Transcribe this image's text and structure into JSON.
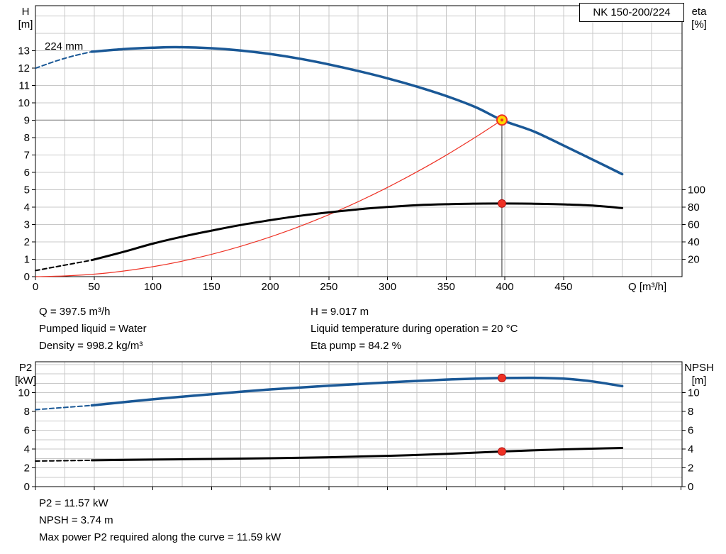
{
  "pump_label": "NK 150-200/224",
  "annotations": {
    "impeller": "224 mm",
    "mid_left": [
      "Q = 397.5 m³/h",
      "Pumped liquid = Water",
      "Density = 998.2 kg/m³"
    ],
    "mid_right": [
      "H = 9.017 m",
      "Liquid temperature during operation = 20 °C",
      "Eta pump = 84.2 %"
    ],
    "bottom": [
      "P2 = 11.57 kW",
      "NPSH = 3.74 m",
      "Max power P2 required along the curve = 11.59 kW"
    ]
  },
  "duty_point": {
    "q_m3h": 397.5,
    "h_m": 9.017,
    "eta_pct": 84.2,
    "p2_kw": 11.57,
    "npsh_m": 3.74,
    "p2_max_kw": 11.59
  },
  "chart_data": [
    {
      "type": "line",
      "title": "NK 150-200/224",
      "x_axis": {
        "label": "Q [m³/h]",
        "min": 0,
        "max": 551,
        "tick_step": 50,
        "tick_max": 450,
        "grid_step": 25,
        "show_tick_labels": true
      },
      "y_left": {
        "label_lines": [
          "H",
          "[m]"
        ],
        "min": 0,
        "max": 15.6,
        "tick_step": 1,
        "tick_max": 13,
        "grid_step": 1
      },
      "y_right": {
        "label_lines": [
          "eta",
          "[%]"
        ],
        "min": 0,
        "max": 312,
        "tick_min": 20,
        "tick_step": 20,
        "tick_max": 100
      },
      "series": [
        {
          "name": "system-curve",
          "axis": "left",
          "color": "#ee3124",
          "width": 1.2,
          "points": [
            [
              0,
              0
            ],
            [
              25,
              0.04
            ],
            [
              50,
              0.143
            ],
            [
              75,
              0.321
            ],
            [
              100,
              0.571
            ],
            [
              125,
              0.892
            ],
            [
              150,
              1.284
            ],
            [
              175,
              1.748
            ],
            [
              200,
              2.283
            ],
            [
              225,
              2.889
            ],
            [
              250,
              3.567
            ],
            [
              275,
              4.316
            ],
            [
              300,
              5.137
            ],
            [
              325,
              6.03
            ],
            [
              350,
              6.99
            ],
            [
              375,
              8.03
            ],
            [
              397.5,
              9.017
            ]
          ]
        },
        {
          "name": "efficiency-curve-extrapolated",
          "axis": "right",
          "color": "#000000",
          "width": 2,
          "dash": "6,4",
          "points": [
            [
              0,
              7
            ],
            [
              16,
              11
            ],
            [
              32,
              15
            ],
            [
              48,
              19
            ]
          ]
        },
        {
          "name": "efficiency-curve",
          "axis": "right",
          "color": "#000000",
          "width": 3,
          "points": [
            [
              48,
              19
            ],
            [
              75,
              28.5
            ],
            [
              100,
              38
            ],
            [
              125,
              46
            ],
            [
              150,
              53
            ],
            [
              175,
              59.5
            ],
            [
              200,
              65
            ],
            [
              225,
              70
            ],
            [
              250,
              74
            ],
            [
              275,
              77.5
            ],
            [
              300,
              80.2
            ],
            [
              325,
              82.3
            ],
            [
              350,
              83.4
            ],
            [
              375,
              84.05
            ],
            [
              397.5,
              84.2
            ],
            [
              425,
              84
            ],
            [
              450,
              83.2
            ],
            [
              475,
              81.8
            ],
            [
              500,
              79
            ]
          ]
        },
        {
          "name": "pump-curve-extrapolated",
          "axis": "left",
          "color": "#1a5896",
          "width": 2,
          "dash": "6,4",
          "points": [
            [
              0,
              12.0
            ],
            [
              16,
              12.38
            ],
            [
              32,
              12.7
            ],
            [
              48,
              12.95
            ]
          ]
        },
        {
          "name": "pump-curve",
          "axis": "left",
          "color": "#1a5896",
          "width": 3.5,
          "points": [
            [
              48,
              12.95
            ],
            [
              75,
              13.1
            ],
            [
              100,
              13.18
            ],
            [
              120,
              13.21
            ],
            [
              150,
              13.15
            ],
            [
              175,
              13.02
            ],
            [
              200,
              12.82
            ],
            [
              225,
              12.55
            ],
            [
              250,
              12.22
            ],
            [
              275,
              11.84
            ],
            [
              300,
              11.42
            ],
            [
              325,
              10.94
            ],
            [
              350,
              10.4
            ],
            [
              375,
              9.76
            ],
            [
              397.5,
              9.017
            ],
            [
              425,
              8.35
            ],
            [
              450,
              7.55
            ],
            [
              475,
              6.73
            ],
            [
              500,
              5.9
            ]
          ]
        }
      ],
      "ref_lines": [
        {
          "name": "duty-head-line",
          "type": "h",
          "value": 9.017,
          "from_x": 0,
          "to_x": 397.5,
          "color": "#808080",
          "width": 1
        },
        {
          "name": "duty-flow-line",
          "type": "v",
          "x": 397.5,
          "from": 0,
          "to": 9.017,
          "color": "#303030",
          "width": 1
        }
      ],
      "markers": [
        {
          "name": "efficiency-point",
          "axis": "right",
          "x": 397.5,
          "y": 84.2,
          "r": 5.5,
          "fill": "#ee3124",
          "stroke": "#b01010",
          "stroke_width": 1
        },
        {
          "name": "duty-point",
          "axis": "left",
          "x": 397.5,
          "y": 9.017,
          "r": 7,
          "fill": "#ffd800",
          "stroke": "#ee3124",
          "stroke_width": 2,
          "center_dot": true
        }
      ]
    },
    {
      "type": "line",
      "title": "",
      "x_axis": {
        "label": "",
        "min": 0,
        "max": 551,
        "tick_step": 50,
        "tick_max": 550,
        "grid_step": 25,
        "show_tick_labels": false
      },
      "y_left": {
        "label_lines": [
          "P2",
          "[kW]"
        ],
        "min": 0,
        "max": 13.3,
        "tick_step": 2,
        "tick_max": 10,
        "grid_step": 1
      },
      "y_right": {
        "label_lines": [
          "NPSH",
          "[m]"
        ],
        "min": 0,
        "max": 13.3,
        "tick_min": 0,
        "tick_step": 2,
        "tick_max": 10
      },
      "series": [
        {
          "name": "p2-curve-extrapolated",
          "axis": "left",
          "color": "#1a5896",
          "width": 2,
          "dash": "6,4",
          "points": [
            [
              0,
              8.2
            ],
            [
              16,
              8.35
            ],
            [
              32,
              8.5
            ],
            [
              48,
              8.65
            ]
          ]
        },
        {
          "name": "p2-curve",
          "axis": "left",
          "color": "#1a5896",
          "width": 3.5,
          "points": [
            [
              48,
              8.65
            ],
            [
              100,
              9.3
            ],
            [
              150,
              9.85
            ],
            [
              200,
              10.35
            ],
            [
              250,
              10.75
            ],
            [
              300,
              11.1
            ],
            [
              350,
              11.4
            ],
            [
              375,
              11.5
            ],
            [
              397.5,
              11.57
            ],
            [
              425,
              11.59
            ],
            [
              450,
              11.5
            ],
            [
              475,
              11.2
            ],
            [
              500,
              10.7
            ]
          ]
        },
        {
          "name": "npsh-curve-extrapolated",
          "axis": "right",
          "color": "#000000",
          "width": 2,
          "dash": "6,4",
          "points": [
            [
              0,
              2.72
            ],
            [
              24,
              2.76
            ],
            [
              48,
              2.8
            ]
          ]
        },
        {
          "name": "npsh-curve",
          "axis": "right",
          "color": "#000000",
          "width": 3,
          "points": [
            [
              48,
              2.8
            ],
            [
              100,
              2.88
            ],
            [
              150,
              2.95
            ],
            [
              200,
              3.02
            ],
            [
              250,
              3.13
            ],
            [
              300,
              3.28
            ],
            [
              350,
              3.48
            ],
            [
              397.5,
              3.74
            ],
            [
              450,
              3.97
            ],
            [
              500,
              4.12
            ]
          ]
        }
      ],
      "ref_lines": [],
      "markers": [
        {
          "name": "p2-point",
          "axis": "left",
          "x": 397.5,
          "y": 11.57,
          "r": 5.5,
          "fill": "#ee3124",
          "stroke": "#b01010",
          "stroke_width": 1
        },
        {
          "name": "npsh-point",
          "axis": "right",
          "x": 397.5,
          "y": 3.74,
          "r": 5.5,
          "fill": "#ee3124",
          "stroke": "#b01010",
          "stroke_width": 1
        }
      ]
    }
  ]
}
